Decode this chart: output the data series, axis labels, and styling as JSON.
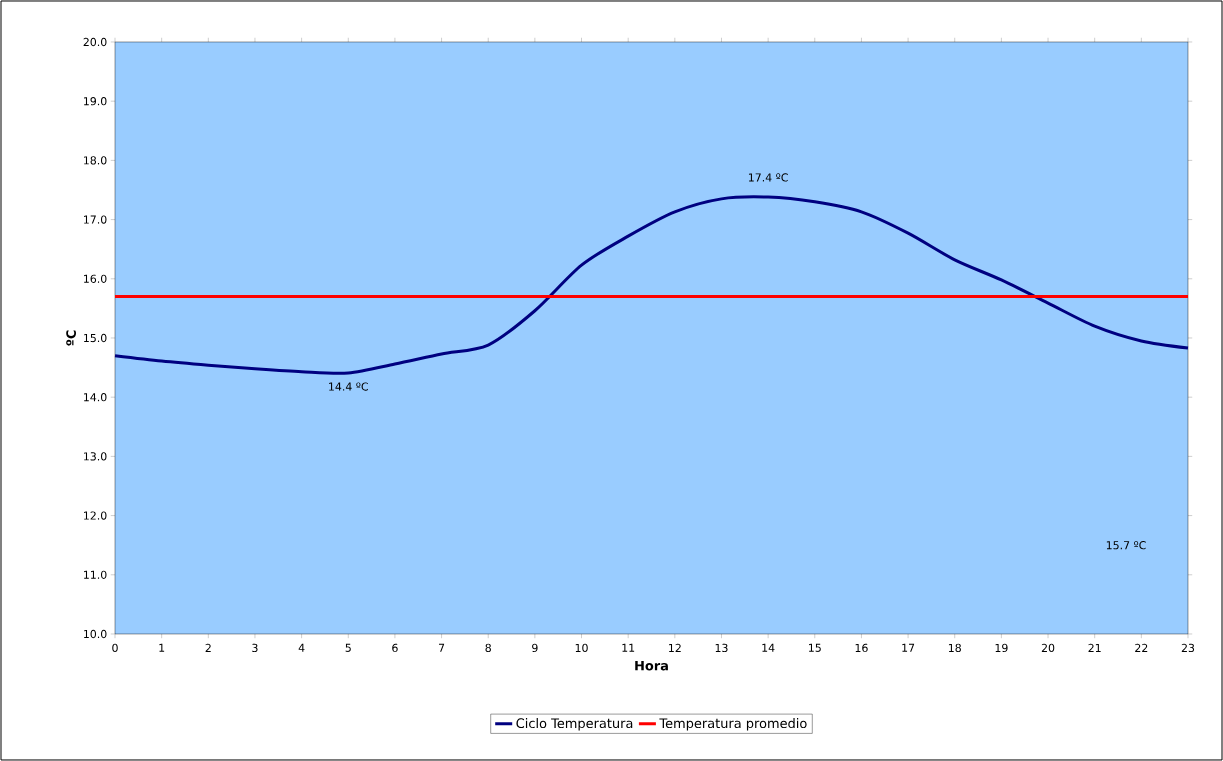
{
  "chart_data": {
    "type": "line",
    "xlabel": "Hora",
    "ylabel": "ºC",
    "x": [
      0,
      1,
      2,
      3,
      4,
      5,
      6,
      7,
      8,
      9,
      10,
      11,
      12,
      13,
      14,
      15,
      16,
      17,
      18,
      19,
      20,
      21,
      22,
      23
    ],
    "series": [
      {
        "name": "Ciclo Temperatura",
        "color": "#000080",
        "values": [
          14.7,
          14.61,
          14.54,
          14.48,
          14.43,
          14.41,
          14.56,
          14.73,
          14.88,
          15.46,
          16.23,
          16.72,
          17.13,
          17.35,
          17.38,
          17.3,
          17.13,
          16.77,
          16.32,
          15.98,
          15.59,
          15.2,
          14.95,
          14.83
        ]
      },
      {
        "name": "Temperatura promedio",
        "color": "#ff0000",
        "values": [
          15.7,
          15.7,
          15.7,
          15.7,
          15.7,
          15.7,
          15.7,
          15.7,
          15.7,
          15.7,
          15.7,
          15.7,
          15.7,
          15.7,
          15.7,
          15.7,
          15.7,
          15.7,
          15.7,
          15.7,
          15.7,
          15.7,
          15.7,
          15.7
        ]
      }
    ],
    "xlim": [
      0,
      23
    ],
    "xticks": [
      0,
      1,
      2,
      3,
      4,
      5,
      6,
      7,
      8,
      9,
      10,
      11,
      12,
      13,
      14,
      15,
      16,
      17,
      18,
      19,
      20,
      21,
      22,
      23
    ],
    "ylim": [
      10,
      20
    ],
    "yticks": [
      {
        "value": 10,
        "label": "10.0"
      },
      {
        "value": 11,
        "label": "11.0"
      },
      {
        "value": 12,
        "label": "12.0"
      },
      {
        "value": 13,
        "label": "13.0"
      },
      {
        "value": 14,
        "label": "14.0"
      },
      {
        "value": 15,
        "label": "15.0"
      },
      {
        "value": 16,
        "label": "16.0"
      },
      {
        "value": 17,
        "label": "17.0"
      },
      {
        "value": 18,
        "label": "18.0"
      },
      {
        "value": 19,
        "label": "19.0"
      },
      {
        "value": 20,
        "label": "20.0"
      }
    ],
    "annotations": [
      {
        "text": "14.4 ºC",
        "x": 5,
        "y": 14.41
      },
      {
        "text": "17.4 ºC",
        "x": 14,
        "y": 17.38
      },
      "15.7 ºC"
    ],
    "grid": false,
    "legend": "bottom",
    "marker": "none",
    "line_style": "solid"
  }
}
